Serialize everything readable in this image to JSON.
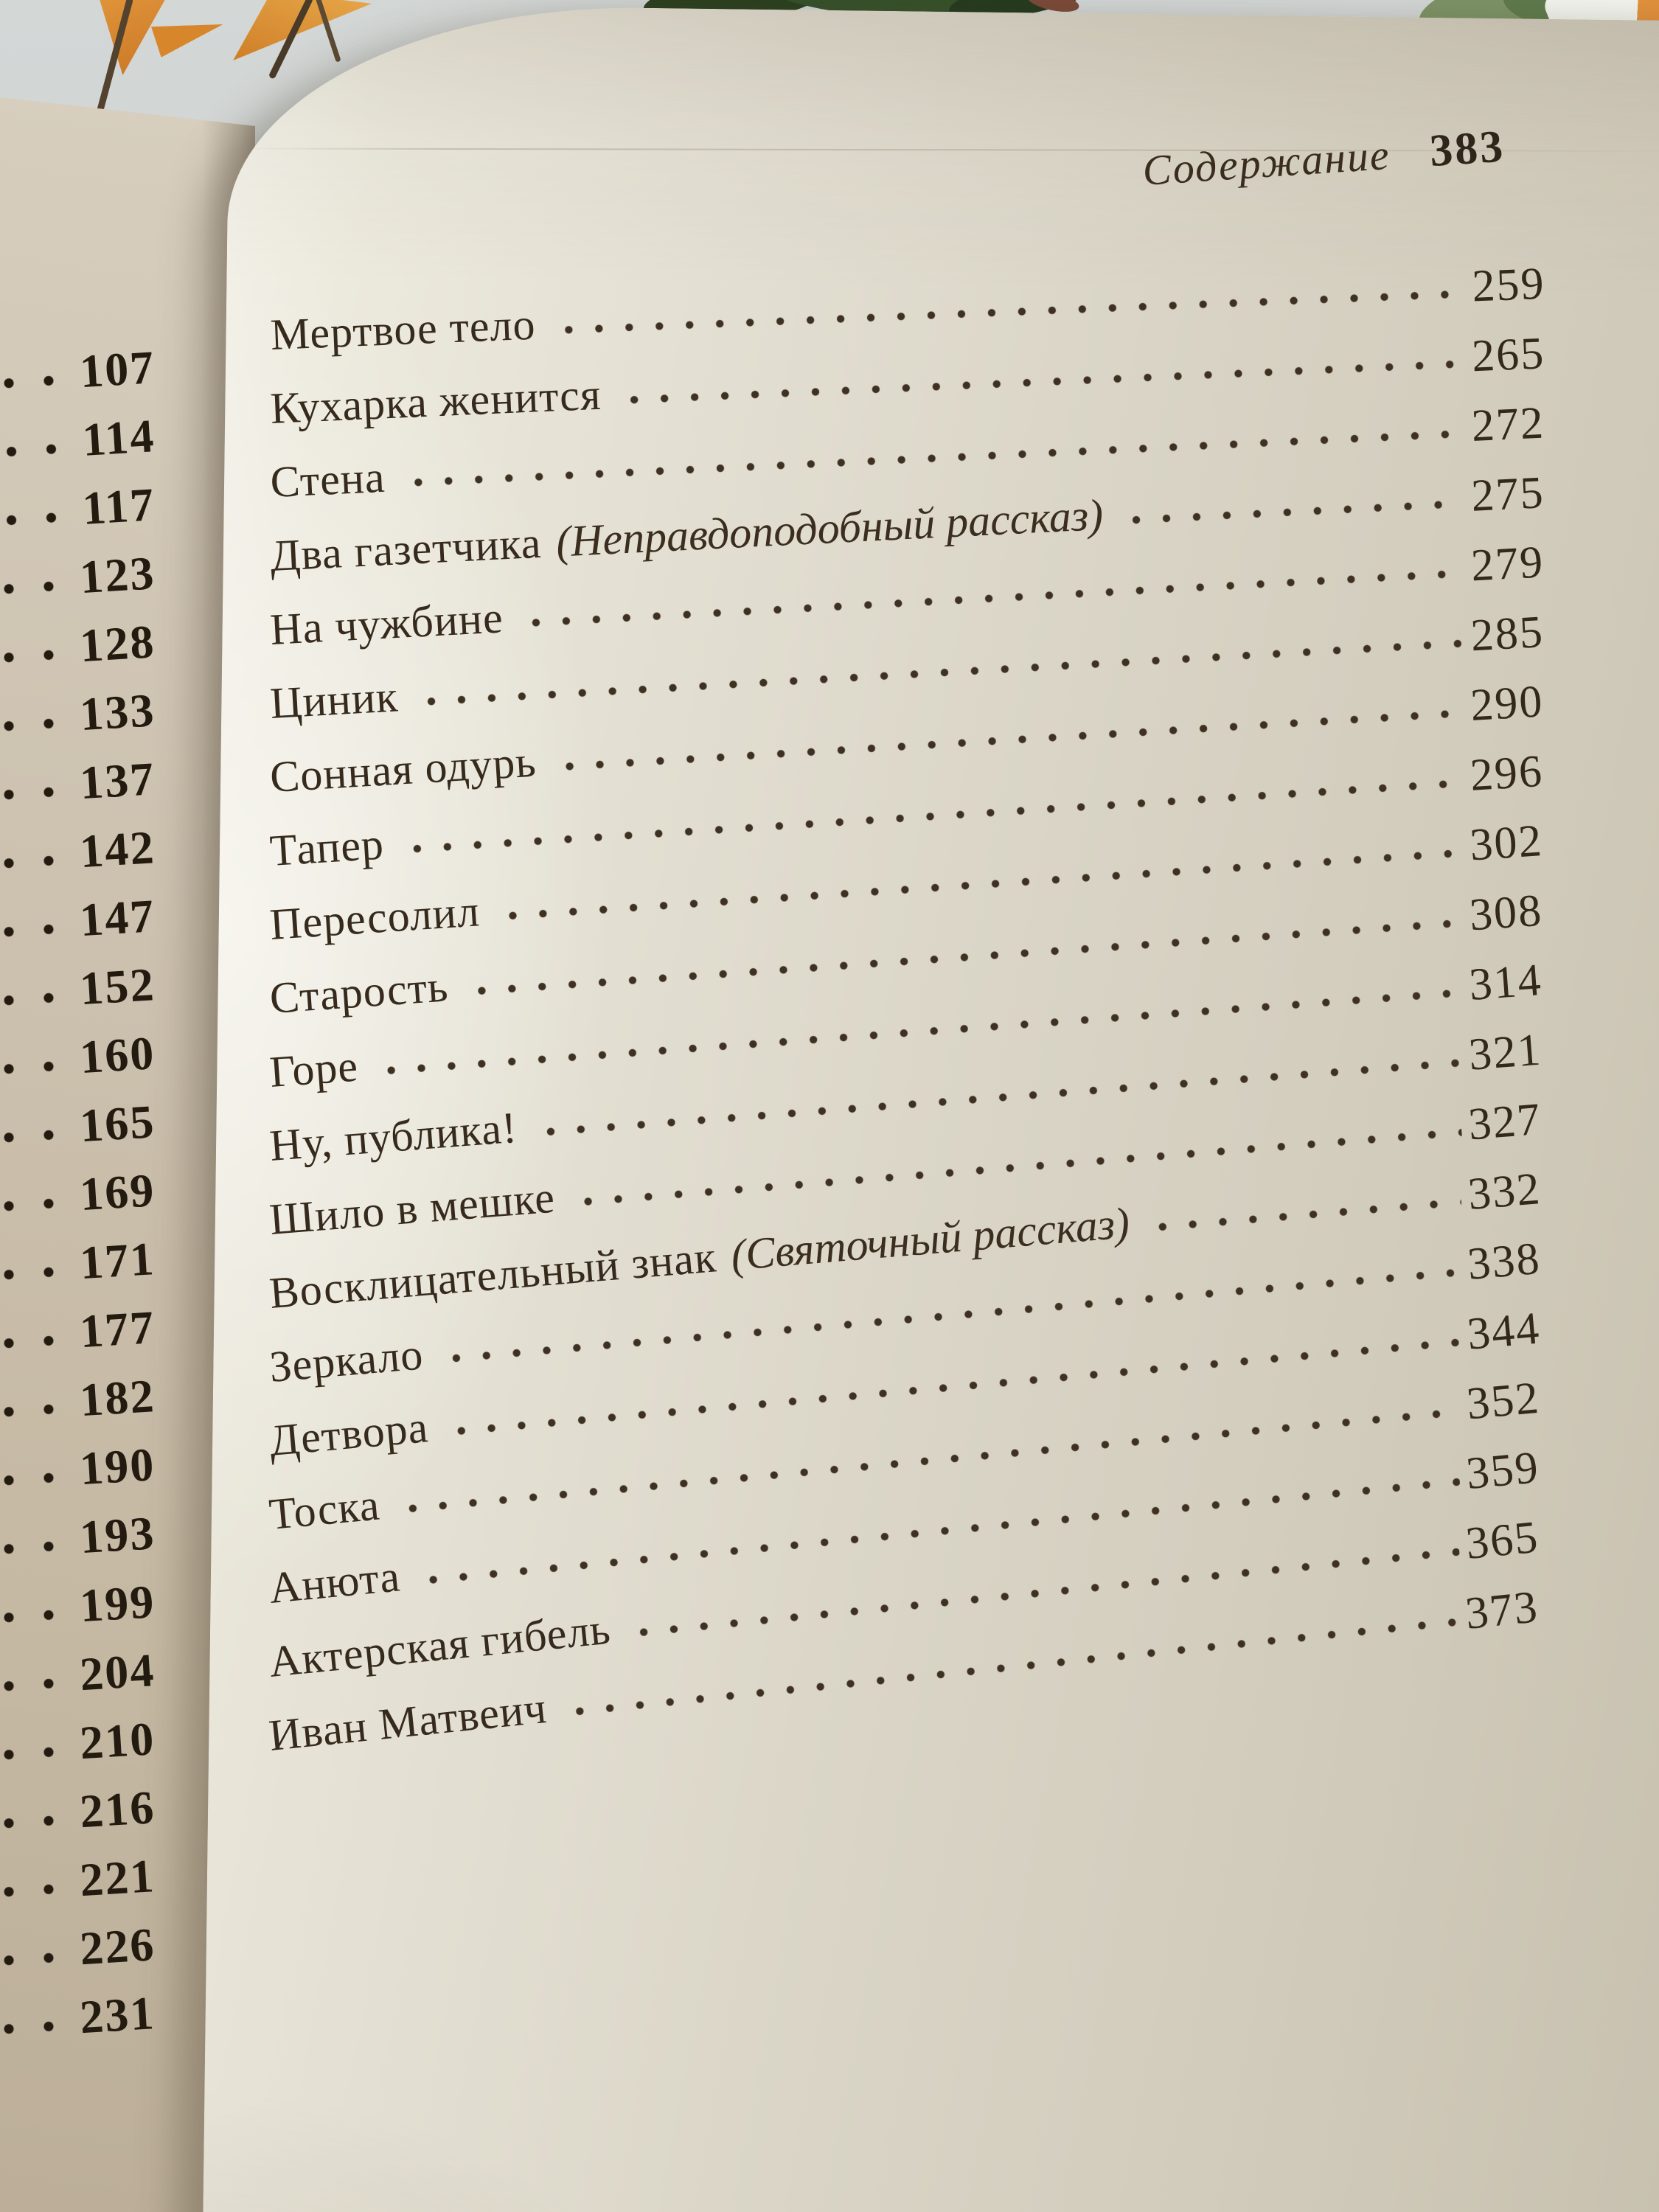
{
  "book_page": {
    "header": {
      "section_title": "Содержание",
      "current_page": "383"
    },
    "toc_entries": [
      {
        "title": "Мертвое тело",
        "note": "",
        "page": "259"
      },
      {
        "title": "Кухарка женится",
        "note": "",
        "page": "265"
      },
      {
        "title": "Стена",
        "note": "",
        "page": "272"
      },
      {
        "title": "Два газетчика",
        "note": "(Неправдоподобный рассказ)",
        "page": "275"
      },
      {
        "title": "На чужбине",
        "note": "",
        "page": "279"
      },
      {
        "title": "Циник",
        "note": "",
        "page": "285"
      },
      {
        "title": "Сонная одурь",
        "note": "",
        "page": "290"
      },
      {
        "title": "Тапер",
        "note": "",
        "page": "296"
      },
      {
        "title": "Пересолил",
        "note": "",
        "page": "302"
      },
      {
        "title": "Старость",
        "note": "",
        "page": "308"
      },
      {
        "title": "Горе",
        "note": "",
        "page": "314"
      },
      {
        "title": "Ну, публика!",
        "note": "",
        "page": "321"
      },
      {
        "title": "Шило в мешке",
        "note": "",
        "page": "327"
      },
      {
        "title": "Восклицательный знак",
        "note": "(Святочный рассказ)",
        "page": "332"
      },
      {
        "title": "Зеркало",
        "note": "",
        "page": "338"
      },
      {
        "title": "Детвора",
        "note": "",
        "page": "344"
      },
      {
        "title": "Тоска",
        "note": "",
        "page": "352"
      },
      {
        "title": "Анюта",
        "note": "",
        "page": "359"
      },
      {
        "title": "Актерская гибель",
        "note": "",
        "page": "365"
      },
      {
        "title": "Иван Матвеич",
        "note": "",
        "page": "373"
      }
    ],
    "left_page_numbers": [
      "107",
      "114",
      "117",
      "123",
      "128",
      "133",
      "137",
      "142",
      "147",
      "152",
      "160",
      "165",
      "169",
      "171",
      "177",
      "182",
      "190",
      "193",
      "199",
      "204",
      "210",
      "216",
      "221",
      "226",
      "231"
    ]
  },
  "colors": {
    "ink": "#362a1c",
    "main_page_paper": "#e2ded1",
    "left_page_paper": "#cdc2b0",
    "wall": "#c9cdcc",
    "plant_orange": "#d8862c",
    "plant_green_dark": "#35512a",
    "plant_green_light": "#7d9366"
  }
}
